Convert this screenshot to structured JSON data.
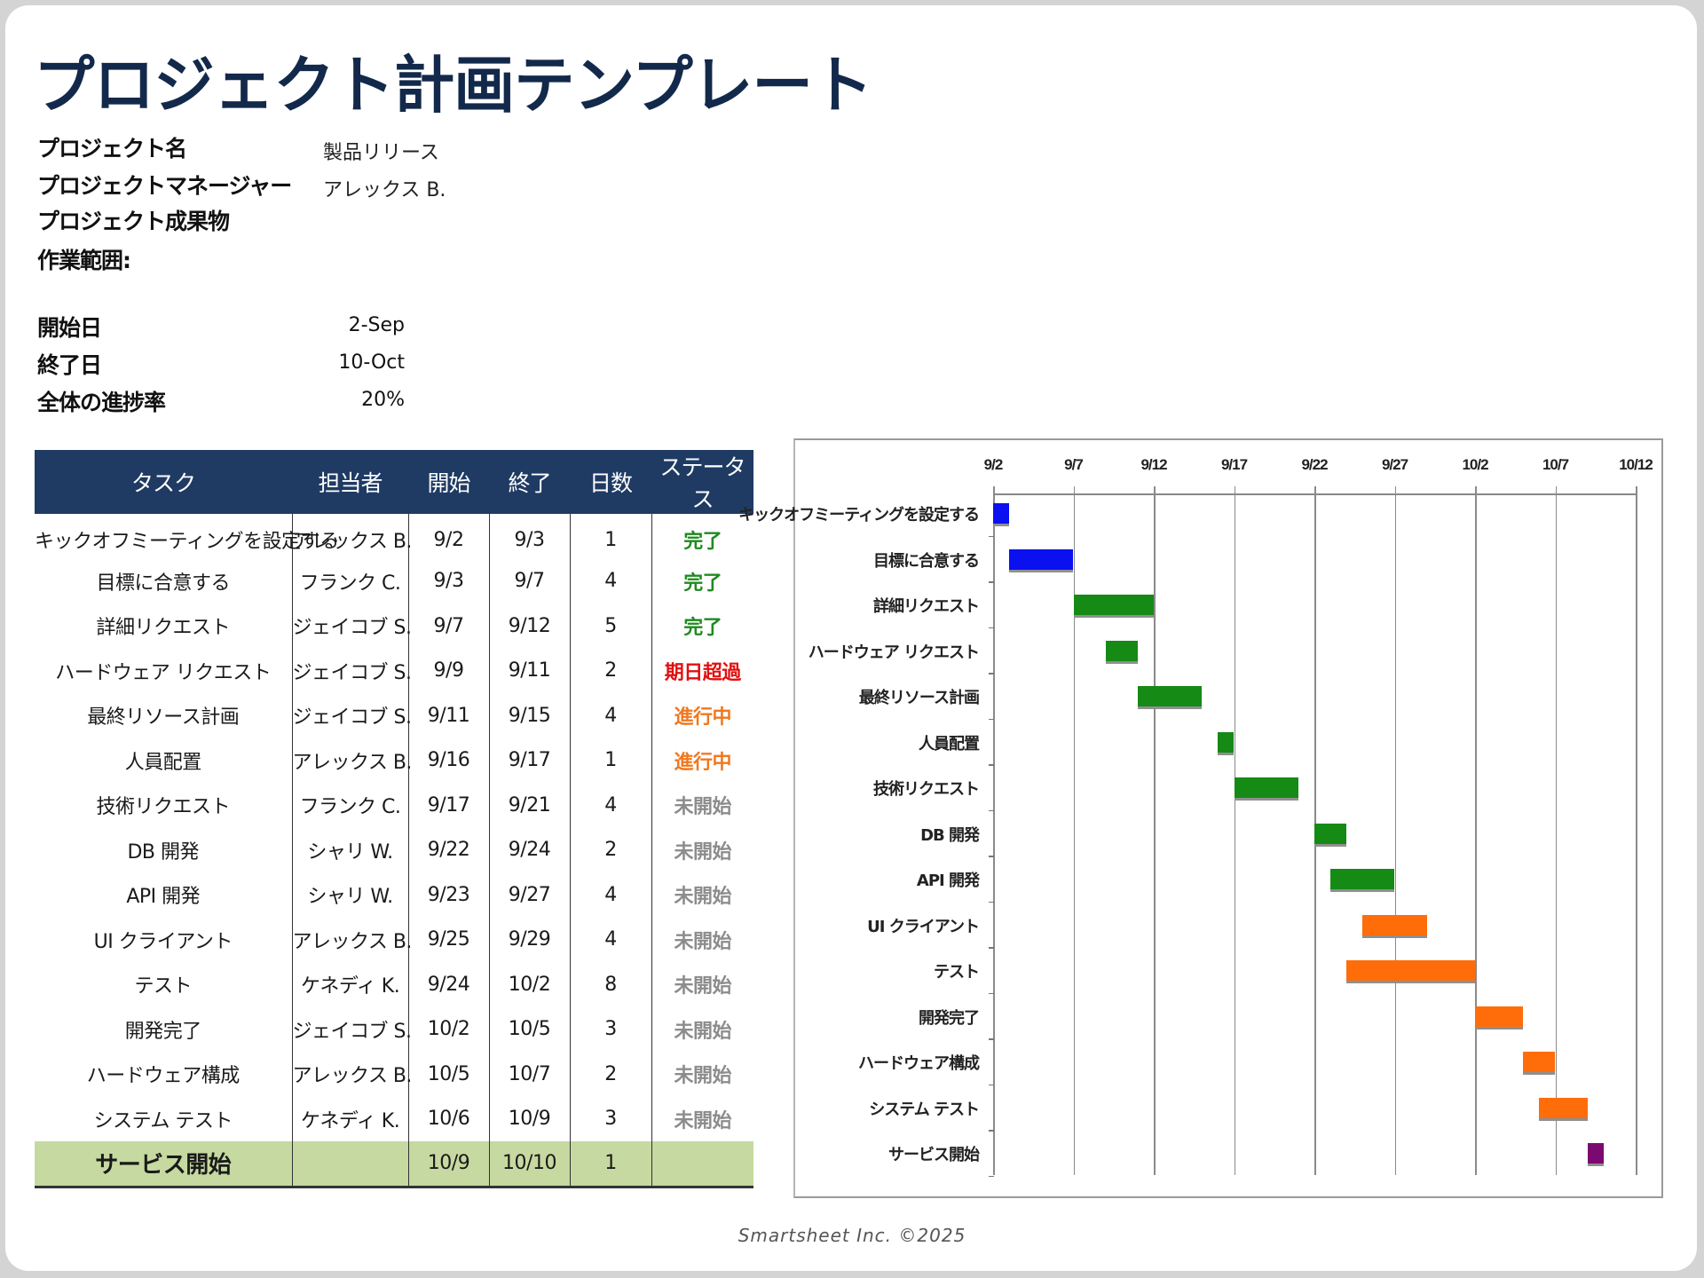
{
  "title": "プロジェクト計画テンプレート",
  "project_info": [
    {
      "label": "プロジェクト名",
      "value": "製品リリース"
    },
    {
      "label": "プロジェクトマネージャー",
      "value": "アレックス B."
    },
    {
      "label": "プロジェクト成果物",
      "value": ""
    },
    {
      "label": "作業範囲:",
      "value": ""
    }
  ],
  "schedule_info": [
    {
      "label": "開始日",
      "value": "2-Sep"
    },
    {
      "label": "終了日",
      "value": "10-Oct"
    },
    {
      "label": "全体の進捗率",
      "value": "20%"
    }
  ],
  "table": {
    "headers": [
      "タスク",
      "担当者",
      "開始",
      "終了",
      "日数",
      "ステータス"
    ],
    "rows": [
      {
        "task": "キックオフミーティングを設定する",
        "owner": "アレックス B.",
        "start": "9/2",
        "end": "9/3",
        "days": "1",
        "status": "完了"
      },
      {
        "task": "目標に合意する",
        "owner": "フランク C.",
        "start": "9/3",
        "end": "9/7",
        "days": "4",
        "status": "完了"
      },
      {
        "task": "詳細リクエスト",
        "owner": "ジェイコブ S.",
        "start": "9/7",
        "end": "9/12",
        "days": "5",
        "status": "完了"
      },
      {
        "task": "ハードウェア リクエスト",
        "owner": "ジェイコブ S.",
        "start": "9/9",
        "end": "9/11",
        "days": "2",
        "status": "期日超過"
      },
      {
        "task": "最終リソース計画",
        "owner": "ジェイコブ S.",
        "start": "9/11",
        "end": "9/15",
        "days": "4",
        "status": "進行中"
      },
      {
        "task": "人員配置",
        "owner": "アレックス B.",
        "start": "9/16",
        "end": "9/17",
        "days": "1",
        "status": "進行中"
      },
      {
        "task": "技術リクエスト",
        "owner": "フランク C.",
        "start": "9/17",
        "end": "9/21",
        "days": "4",
        "status": "未開始"
      },
      {
        "task": "DB 開発",
        "owner": "シャリ W.",
        "start": "9/22",
        "end": "9/24",
        "days": "2",
        "status": "未開始"
      },
      {
        "task": "API 開発",
        "owner": "シャリ W.",
        "start": "9/23",
        "end": "9/27",
        "days": "4",
        "status": "未開始"
      },
      {
        "task": "UI クライアント",
        "owner": "アレックス B.",
        "start": "9/25",
        "end": "9/29",
        "days": "4",
        "status": "未開始"
      },
      {
        "task": "テスト",
        "owner": "ケネディ K.",
        "start": "9/24",
        "end": "10/2",
        "days": "8",
        "status": "未開始"
      },
      {
        "task": "開発完了",
        "owner": "ジェイコブ S.",
        "start": "10/2",
        "end": "10/5",
        "days": "3",
        "status": "未開始"
      },
      {
        "task": "ハードウェア構成",
        "owner": "アレックス B.",
        "start": "10/5",
        "end": "10/7",
        "days": "2",
        "status": "未開始"
      },
      {
        "task": "システム テスト",
        "owner": "ケネディ K.",
        "start": "10/6",
        "end": "10/9",
        "days": "3",
        "status": "未開始"
      },
      {
        "task": "サービス開始",
        "owner": "",
        "start": "10/9",
        "end": "10/10",
        "days": "1",
        "status": ""
      }
    ]
  },
  "status_colors": {
    "完了": "#1f8a1f",
    "期日超過": "#e01010",
    "進行中": "#f07820",
    "未開始": "#8c8c8c"
  },
  "chart_data": {
    "type": "gantt",
    "title": "",
    "x_ticks": [
      "9/2",
      "9/7",
      "9/12",
      "9/17",
      "9/22",
      "9/27",
      "10/2",
      "10/7",
      "10/12"
    ],
    "x_range_days_from_9_2": [
      0,
      40
    ],
    "grid": true,
    "tasks": [
      {
        "label": "キックオフミーティングを設定する",
        "start_day": 0,
        "duration": 1,
        "color": "#0a10f0"
      },
      {
        "label": "目標に合意する",
        "start_day": 1,
        "duration": 4,
        "color": "#0a10f0"
      },
      {
        "label": "詳細リクエスト",
        "start_day": 5,
        "duration": 5,
        "color": "#158a15"
      },
      {
        "label": "ハードウェア リクエスト",
        "start_day": 7,
        "duration": 2,
        "color": "#158a15"
      },
      {
        "label": "最終リソース計画",
        "start_day": 9,
        "duration": 4,
        "color": "#158a15"
      },
      {
        "label": "人員配置",
        "start_day": 14,
        "duration": 1,
        "color": "#158a15"
      },
      {
        "label": "技術リクエスト",
        "start_day": 15,
        "duration": 4,
        "color": "#158a15"
      },
      {
        "label": "DB 開発",
        "start_day": 20,
        "duration": 2,
        "color": "#158a15"
      },
      {
        "label": "API 開発",
        "start_day": 21,
        "duration": 4,
        "color": "#158a15"
      },
      {
        "label": "UI クライアント",
        "start_day": 23,
        "duration": 4,
        "color": "#ff6d0a"
      },
      {
        "label": "テスト",
        "start_day": 22,
        "duration": 8,
        "color": "#ff6d0a"
      },
      {
        "label": "開発完了",
        "start_day": 30,
        "duration": 3,
        "color": "#ff6d0a"
      },
      {
        "label": "ハードウェア構成",
        "start_day": 33,
        "duration": 2,
        "color": "#ff6d0a"
      },
      {
        "label": "システム テスト",
        "start_day": 34,
        "duration": 3,
        "color": "#ff6d0a"
      },
      {
        "label": "サービス開始",
        "start_day": 37,
        "duration": 1,
        "color": "#7a0a70"
      }
    ]
  },
  "footer": "Smartsheet Inc. ©2025"
}
